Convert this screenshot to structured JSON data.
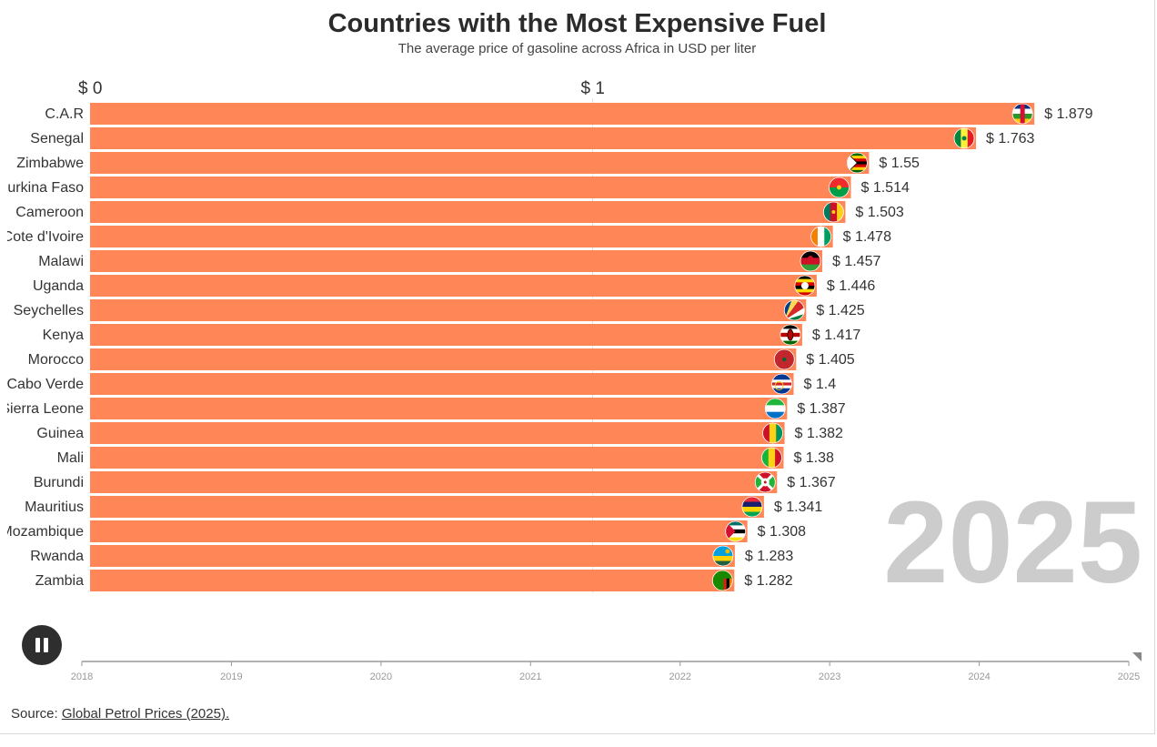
{
  "header": {
    "title": "Countries with the Most Expensive Fuel",
    "subtitle": "The average price of gasoline across Africa in USD per liter"
  },
  "chart_data": {
    "type": "bar",
    "orientation": "horizontal",
    "title": "Countries with the Most Expensive Fuel",
    "subtitle": "The average price of gasoline across Africa in USD per liter",
    "value_prefix": "$ ",
    "xlim": [
      0,
      1.879
    ],
    "x_ticks": [
      {
        "value": 0,
        "label": "$ 0"
      },
      {
        "value": 1,
        "label": "$ 1"
      }
    ],
    "categories": [
      "C.A.R",
      "Senegal",
      "Zimbabwe",
      "Burkina Faso",
      "Cameroon",
      "Cote d'Ivoire",
      "Malawi",
      "Uganda",
      "Seychelles",
      "Kenya",
      "Morocco",
      "Cabo Verde",
      "Sierra Leone",
      "Guinea",
      "Mali",
      "Burundi",
      "Mauritius",
      "Mozambique",
      "Rwanda",
      "Zambia"
    ],
    "values": [
      1.879,
      1.763,
      1.55,
      1.514,
      1.503,
      1.478,
      1.457,
      1.446,
      1.425,
      1.417,
      1.405,
      1.4,
      1.387,
      1.382,
      1.38,
      1.367,
      1.341,
      1.308,
      1.283,
      1.282
    ],
    "flags": [
      "flag-car",
      "flag-senegal",
      "flag-zimbabwe",
      "flag-burkina-faso",
      "flag-cameroon",
      "flag-cote-divoire",
      "flag-malawi",
      "flag-uganda",
      "flag-seychelles",
      "flag-kenya",
      "flag-morocco",
      "flag-cabo-verde",
      "flag-sierra-leone",
      "flag-guinea",
      "flag-mali",
      "flag-burundi",
      "flag-mauritius",
      "flag-mozambique",
      "flag-rwanda",
      "flag-zambia"
    ],
    "bar_color": "#ff8657",
    "current_year": "2025",
    "timeline": {
      "years": [
        "2018",
        "2019",
        "2020",
        "2021",
        "2022",
        "2023",
        "2024",
        "2025"
      ],
      "position": 2025
    }
  },
  "controls": {
    "pause_icon": "pause-icon"
  },
  "source": {
    "prefix": "Source: ",
    "link_text": "Global Petrol Prices (2025)."
  }
}
